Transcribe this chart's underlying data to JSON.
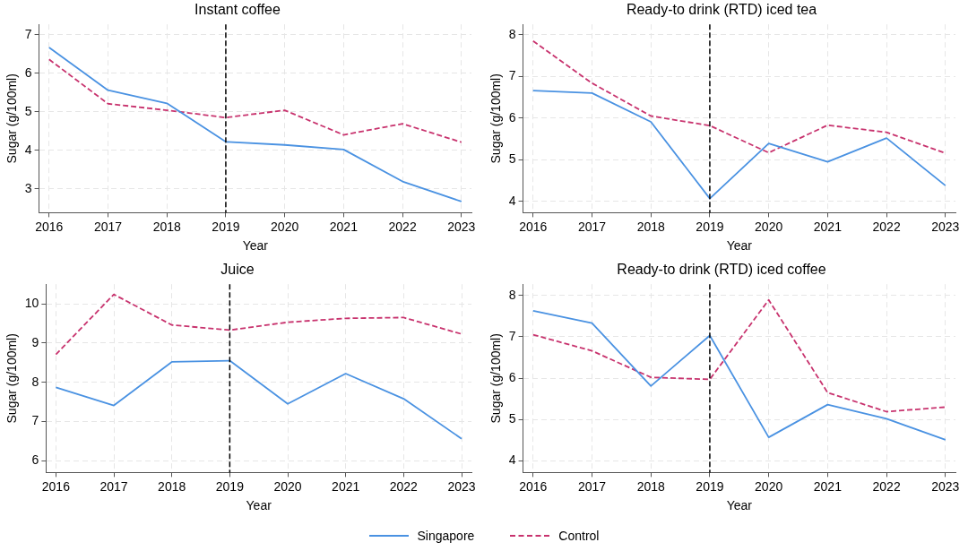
{
  "chart_data": [
    {
      "type": "line",
      "title": "Instant coffee",
      "xlabel": "Year",
      "ylabel": "Sugar (g/100ml)",
      "x": [
        2016,
        2017,
        2018,
        2019,
        2020,
        2021,
        2022,
        2023
      ],
      "xlim": [
        2015.83,
        2023.17
      ],
      "xticks": [
        2016,
        2017,
        2018,
        2019,
        2020,
        2021,
        2022,
        2023
      ],
      "ylim": [
        2.38,
        7.27
      ],
      "yticks": [
        3,
        4,
        5,
        6,
        7
      ],
      "grid": true,
      "legend": "bottom",
      "ref_lines": [
        {
          "axis": "x",
          "value": 2019,
          "color": "#000000",
          "line_style": "dashed"
        }
      ],
      "series": [
        {
          "name": "Singapore",
          "color": "#4a92e2",
          "line_style": "solid",
          "values": [
            6.67,
            5.56,
            5.22,
            4.22,
            4.14,
            4.02,
            3.19,
            2.67
          ]
        },
        {
          "name": "Control",
          "color": "#c8336e",
          "line_style": "dashed",
          "values": [
            6.36,
            5.21,
            5.04,
            4.85,
            5.04,
            4.4,
            4.69,
            4.21
          ]
        }
      ]
    },
    {
      "type": "line",
      "title": "Ready-to drink (RTD) iced tea",
      "xlabel": "Year",
      "ylabel": "Sugar (g/100ml)",
      "x": [
        2016,
        2017,
        2018,
        2019,
        2020,
        2021,
        2022,
        2023
      ],
      "xlim": [
        2015.83,
        2023.17
      ],
      "xticks": [
        2016,
        2017,
        2018,
        2019,
        2020,
        2021,
        2022,
        2023
      ],
      "ylim": [
        3.73,
        8.25
      ],
      "yticks": [
        4,
        5,
        6,
        7,
        8
      ],
      "grid": true,
      "ref_lines": [
        {
          "axis": "x",
          "value": 2019,
          "color": "#000000",
          "line_style": "dashed"
        }
      ],
      "series": [
        {
          "color": "#4a92e2",
          "line_style": "solid",
          "values": [
            6.66,
            6.6,
            5.91,
            4.07,
            5.39,
            4.95,
            5.52,
            4.38
          ]
        },
        {
          "color": "#c8336e",
          "line_style": "dashed",
          "values": [
            7.85,
            6.84,
            6.05,
            5.82,
            5.17,
            5.83,
            5.66,
            5.16
          ]
        }
      ]
    },
    {
      "type": "line",
      "title": "Juice",
      "xlabel": "Year",
      "ylabel": "Sugar (g/100ml)",
      "x": [
        2016,
        2017,
        2018,
        2019,
        2020,
        2021,
        2022,
        2023
      ],
      "xlim": [
        2015.83,
        2023.17
      ],
      "xticks": [
        2016,
        2017,
        2018,
        2019,
        2020,
        2021,
        2022,
        2023
      ],
      "ylim": [
        5.7,
        10.5
      ],
      "yticks": [
        6,
        7,
        8,
        9,
        10
      ],
      "grid": true,
      "ref_lines": [
        {
          "axis": "x",
          "value": 2019,
          "color": "#000000",
          "line_style": "dashed"
        }
      ],
      "series": [
        {
          "color": "#4a92e2",
          "line_style": "solid",
          "values": [
            7.87,
            7.41,
            8.52,
            8.55,
            7.45,
            8.22,
            7.58,
            6.56
          ]
        },
        {
          "color": "#c8336e",
          "line_style": "dashed",
          "values": [
            8.71,
            10.24,
            9.46,
            9.33,
            9.53,
            9.63,
            9.65,
            9.23
          ]
        }
      ]
    },
    {
      "type": "line",
      "title": "Ready-to drink (RTD) iced coffee",
      "xlabel": "Year",
      "ylabel": "Sugar (g/100ml)",
      "x": [
        2016,
        2017,
        2018,
        2019,
        2020,
        2021,
        2022,
        2023
      ],
      "xlim": [
        2015.83,
        2023.17
      ],
      "xticks": [
        2016,
        2017,
        2018,
        2019,
        2020,
        2021,
        2022,
        2023
      ],
      "ylim": [
        3.72,
        8.27
      ],
      "yticks": [
        4,
        5,
        6,
        7,
        8
      ],
      "grid": true,
      "ref_lines": [
        {
          "axis": "x",
          "value": 2019,
          "color": "#000000",
          "line_style": "dashed"
        }
      ],
      "series": [
        {
          "color": "#4a92e2",
          "line_style": "solid",
          "values": [
            7.63,
            7.33,
            5.81,
            7.03,
            4.57,
            5.36,
            5.02,
            4.51
          ]
        },
        {
          "color": "#c8336e",
          "line_style": "dashed",
          "values": [
            7.05,
            6.66,
            6.02,
            5.97,
            7.89,
            5.65,
            5.19,
            5.3
          ]
        }
      ]
    }
  ]
}
